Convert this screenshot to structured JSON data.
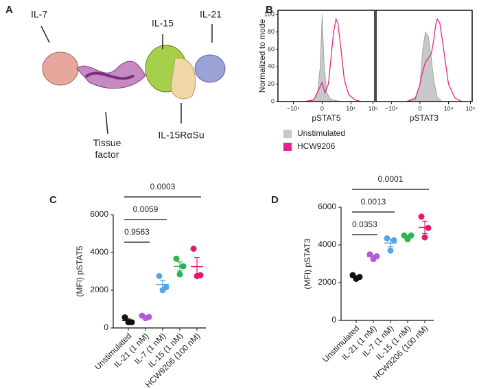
{
  "structure": {
    "panel": "A",
    "labels": [
      "IL-7",
      "IL-15",
      "IL-21",
      "Tissue factor",
      "IL-15RαSu"
    ]
  },
  "chart_data": [
    {
      "type": "hist",
      "panel": "B",
      "xlabel": "pSTAT5",
      "ylabel": "Normalized to mode",
      "xlim": [
        -50000,
        120000
      ],
      "ylim": [
        0,
        105
      ],
      "xticks": [
        {
          "value": -10000,
          "label": "−10⁴"
        },
        0,
        {
          "value": 10000,
          "label": "10⁴"
        },
        {
          "value": 100000,
          "label": "10⁵"
        }
      ],
      "yticks": [
        0,
        20,
        40,
        60,
        80,
        100
      ],
      "series": [
        {
          "name": "Unstimulated",
          "color": "#c8c8c8",
          "filled": true,
          "x": [
            -3000,
            -1000,
            -500,
            -200,
            0,
            200,
            500,
            1000,
            2000,
            4000
          ],
          "values": [
            0,
            2,
            10,
            40,
            100,
            45,
            10,
            3,
            1,
            0
          ]
        },
        {
          "name": "HCW9206",
          "color": "#e8238f",
          "filled": false,
          "x": [
            -3000,
            -1000,
            -300,
            0,
            300,
            700,
            1000,
            1500,
            2000,
            2500,
            3500,
            5000,
            8000,
            15000,
            30000
          ],
          "values": [
            0,
            2,
            15,
            22,
            10,
            20,
            45,
            80,
            95,
            90,
            60,
            25,
            8,
            2,
            0
          ]
        }
      ]
    },
    {
      "type": "hist",
      "xlabel": "pSTAT3",
      "xlim": [
        -50000,
        120000
      ],
      "ylim": [
        0,
        105
      ],
      "xticks": [
        {
          "value": -10000,
          "label": "−10⁴"
        },
        0,
        {
          "value": 10000,
          "label": "10⁴"
        },
        {
          "value": 100000,
          "label": "10⁵"
        }
      ],
      "series": [
        {
          "color": "#c8c8c8",
          "filled": true,
          "x": [
            -2000,
            -500,
            0,
            300,
            600,
            1000,
            1500,
            2000,
            3000,
            5000
          ],
          "values": [
            0,
            5,
            20,
            60,
            80,
            75,
            50,
            25,
            5,
            0
          ]
        },
        {
          "color": "#e8238f",
          "filled": false,
          "x": [
            -2000,
            -500,
            0,
            300,
            600,
            1000,
            1500,
            2000,
            2500,
            3000,
            4000,
            6000,
            10000,
            20000,
            40000
          ],
          "values": [
            0,
            3,
            20,
            35,
            45,
            50,
            55,
            70,
            88,
            95,
            90,
            60,
            20,
            4,
            0
          ]
        }
      ]
    },
    {
      "type": "dot",
      "panel": "C",
      "ylabel": "(MFI) pSTAT5",
      "categories": [
        "Unstimulated",
        "IL-21 (1 nM)",
        "IL-7 (1 nM)",
        "IL-15 (1 nM)",
        "HCW9206 (100 nM)"
      ],
      "colors": [
        "#111111",
        "#b45ad8",
        "#58a4e6",
        "#2fb34a",
        "#e0196f"
      ],
      "points": [
        [
          560,
          300,
          300
        ],
        [
          650,
          580,
          520
        ],
        [
          2750,
          2150,
          2000
        ],
        [
          3670,
          3270,
          2840
        ],
        [
          4200,
          2800,
          2750
        ]
      ],
      "means": [
        390,
        580,
        2300,
        3260,
        3250
      ],
      "sems": [
        90,
        40,
        230,
        240,
        480
      ],
      "ylim": [
        0,
        6000
      ],
      "yticks": [
        0,
        2000,
        4000,
        6000
      ],
      "comparisons": [
        {
          "groups": [
            "Unstimulated",
            "IL-21 (1 nM)"
          ],
          "label": "0.9563"
        },
        {
          "groups": [
            "Unstimulated",
            "IL-7 (1 nM)"
          ],
          "label": "0.0059"
        },
        {
          "groups": [
            "Unstimulated",
            "HCW9206 (100 nM)"
          ],
          "label": "0.0003"
        }
      ]
    },
    {
      "type": "dot",
      "panel": "D",
      "ylabel": "(MFI) pSTAT3",
      "categories": [
        "Unstimulated",
        "IL-21 (1 nM)",
        "IL-7 (1 nM)",
        "IL-15 (1 nM)",
        "HCW9206 (100 nM)"
      ],
      "colors": [
        "#111111",
        "#b45ad8",
        "#58a4e6",
        "#2fb34a",
        "#e0196f"
      ],
      "points": [
        [
          2400,
          2300,
          2200
        ],
        [
          3500,
          3400,
          3250
        ],
        [
          4350,
          4250,
          3700
        ],
        [
          4500,
          4500,
          4300
        ],
        [
          5500,
          4900,
          4400
        ]
      ],
      "means": [
        2300,
        3380,
        4100,
        4430,
        4930
      ],
      "sems": [
        60,
        80,
        200,
        70,
        330
      ],
      "ylim": [
        0,
        6000
      ],
      "yticks": [
        0,
        2000,
        4000,
        6000
      ],
      "comparisons": [
        {
          "groups": [
            "Unstimulated",
            "IL-21 (1 nM)"
          ],
          "label": "0.0353"
        },
        {
          "groups": [
            "Unstimulated",
            "IL-7 (1 nM)"
          ],
          "label": "0.0013"
        },
        {
          "groups": [
            "Unstimulated",
            "HCW9206 (100 nM)"
          ],
          "label": "0.0001"
        }
      ]
    }
  ]
}
